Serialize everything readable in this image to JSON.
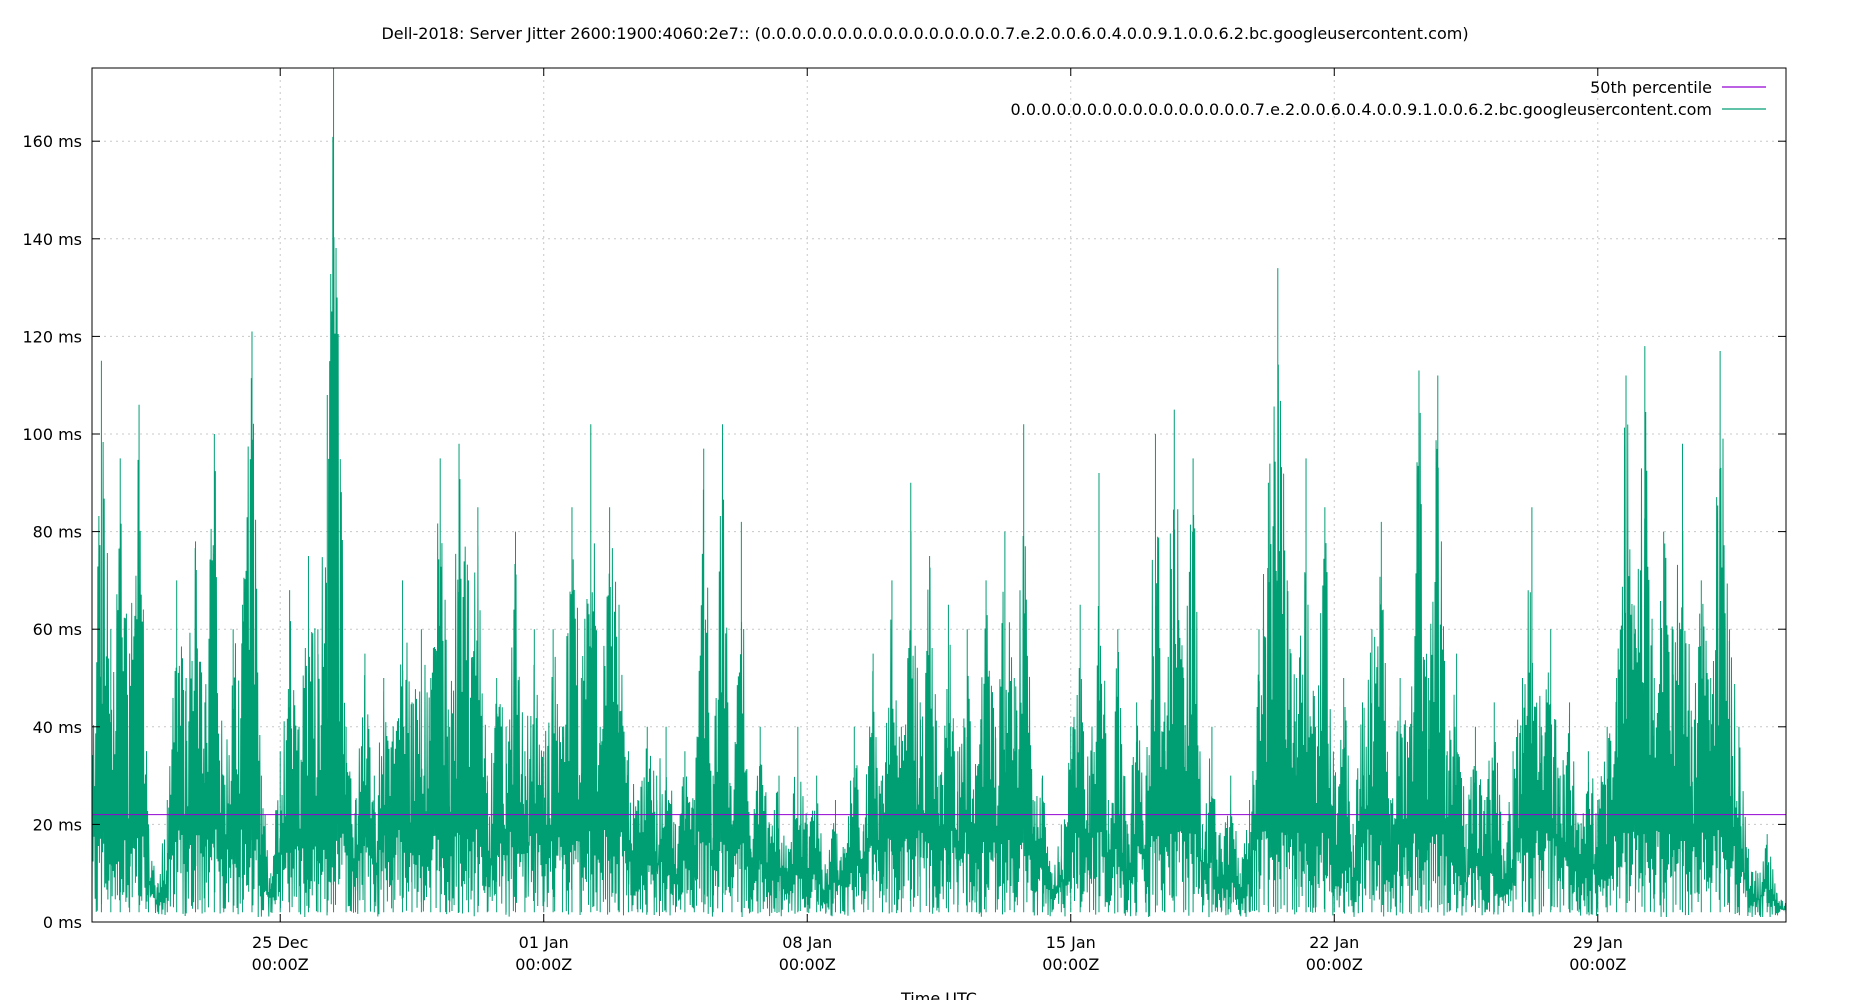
{
  "chart_data": {
    "type": "line",
    "title": "Dell-2018: Server Jitter 2600:1900:4060:2e7:: (0.0.0.0.0.0.0.0.0.0.0.0.0.0.0.0.7.e.2.0.0.6.0.4.0.0.9.1.0.0.6.2.bc.googleusercontent.com)",
    "xlabel": "Time UTC",
    "ylabel": "",
    "grid": true,
    "legend_placement": "top-right",
    "x_range": [
      "2018-12-20T00:00Z",
      "2019-02-03T00:00Z"
    ],
    "y_unit": "ms",
    "ylim": [
      0,
      175
    ],
    "yticks": [
      0,
      20,
      40,
      60,
      80,
      100,
      120,
      140,
      160
    ],
    "ytick_labels": [
      "0 ms",
      "20 ms",
      "40 ms",
      "60 ms",
      "80 ms",
      "100 ms",
      "120 ms",
      "140 ms",
      "160 ms"
    ],
    "xticks": [
      "2018-12-25T00:00Z",
      "2019-01-01T00:00Z",
      "2019-01-08T00:00Z",
      "2019-01-15T00:00Z",
      "2019-01-22T00:00Z",
      "2019-01-29T00:00Z"
    ],
    "xtick_labels": [
      [
        "25 Dec",
        "00:00Z"
      ],
      [
        "01 Jan",
        "00:00Z"
      ],
      [
        "08 Jan",
        "00:00Z"
      ],
      [
        "15 Jan",
        "00:00Z"
      ],
      [
        "22 Jan",
        "00:00Z"
      ],
      [
        "29 Jan",
        "00:00Z"
      ]
    ],
    "series": [
      {
        "name": "50th percentile",
        "color": "#9400d3",
        "kind": "constant",
        "value": 22
      },
      {
        "name": "0.0.0.0.0.0.0.0.0.0.0.0.0.0.0.0.7.e.2.0.0.6.0.4.0.0.9.1.0.0.6.2.bc.googleusercontent.com",
        "color": "#009e73",
        "kind": "jitter",
        "points": [
          [
            "2018-12-20T00:00Z",
            40
          ],
          [
            "2018-12-20T06:00Z",
            115
          ],
          [
            "2018-12-20T12:00Z",
            60
          ],
          [
            "2018-12-20T18:00Z",
            95
          ],
          [
            "2018-12-21T00:00Z",
            55
          ],
          [
            "2018-12-21T06:00Z",
            106
          ],
          [
            "2018-12-21T12:00Z",
            20
          ],
          [
            "2018-12-21T18:00Z",
            8
          ],
          [
            "2018-12-22T00:00Z",
            25
          ],
          [
            "2018-12-22T06:00Z",
            70
          ],
          [
            "2018-12-22T12:00Z",
            50
          ],
          [
            "2018-12-22T18:00Z",
            78
          ],
          [
            "2018-12-23T00:00Z",
            45
          ],
          [
            "2018-12-23T06:00Z",
            100
          ],
          [
            "2018-12-23T12:00Z",
            30
          ],
          [
            "2018-12-23T18:00Z",
            60
          ],
          [
            "2018-12-24T00:00Z",
            65
          ],
          [
            "2018-12-24T06:00Z",
            121
          ],
          [
            "2018-12-24T12:00Z",
            30
          ],
          [
            "2018-12-24T18:00Z",
            10
          ],
          [
            "2018-12-25T00:00Z",
            35
          ],
          [
            "2018-12-25T06:00Z",
            68
          ],
          [
            "2018-12-25T12:00Z",
            40
          ],
          [
            "2018-12-25T18:00Z",
            75
          ],
          [
            "2018-12-26T00:00Z",
            60
          ],
          [
            "2018-12-26T06:00Z",
            108
          ],
          [
            "2018-12-26T10:00Z",
            175
          ],
          [
            "2018-12-26T18:00Z",
            40
          ],
          [
            "2018-12-27T00:00Z",
            25
          ],
          [
            "2018-12-27T06:00Z",
            55
          ],
          [
            "2018-12-27T12:00Z",
            30
          ],
          [
            "2018-12-27T18:00Z",
            50
          ],
          [
            "2018-12-28T00:00Z",
            40
          ],
          [
            "2018-12-28T06:00Z",
            70
          ],
          [
            "2018-12-28T12:00Z",
            45
          ],
          [
            "2018-12-28T18:00Z",
            60
          ],
          [
            "2018-12-29T00:00Z",
            50
          ],
          [
            "2018-12-29T06:00Z",
            95
          ],
          [
            "2018-12-29T12:00Z",
            40
          ],
          [
            "2018-12-29T18:00Z",
            98
          ],
          [
            "2018-12-30T00:00Z",
            70
          ],
          [
            "2018-12-30T06:00Z",
            85
          ],
          [
            "2018-12-30T12:00Z",
            30
          ],
          [
            "2018-12-30T18:00Z",
            50
          ],
          [
            "2018-12-31T00:00Z",
            40
          ],
          [
            "2018-12-31T06:00Z",
            80
          ],
          [
            "2018-12-31T12:00Z",
            35
          ],
          [
            "2018-12-31T18:00Z",
            60
          ],
          [
            "2019-01-01T00:00Z",
            35
          ],
          [
            "2019-01-01T06:00Z",
            60
          ],
          [
            "2019-01-01T12:00Z",
            40
          ],
          [
            "2019-01-01T18:00Z",
            85
          ],
          [
            "2019-01-02T00:00Z",
            50
          ],
          [
            "2019-01-02T06:00Z",
            102
          ],
          [
            "2019-01-02T12:00Z",
            40
          ],
          [
            "2019-01-02T18:00Z",
            85
          ],
          [
            "2019-01-03T00:00Z",
            65
          ],
          [
            "2019-01-03T06:00Z",
            35
          ],
          [
            "2019-01-03T12:00Z",
            25
          ],
          [
            "2019-01-03T18:00Z",
            40
          ],
          [
            "2019-01-04T00:00Z",
            30
          ],
          [
            "2019-01-04T06:00Z",
            40
          ],
          [
            "2019-01-04T12:00Z",
            20
          ],
          [
            "2019-01-04T18:00Z",
            35
          ],
          [
            "2019-01-05T00:00Z",
            25
          ],
          [
            "2019-01-05T06:00Z",
            97
          ],
          [
            "2019-01-05T12:00Z",
            30
          ],
          [
            "2019-01-05T18:00Z",
            102
          ],
          [
            "2019-01-06T00:00Z",
            20
          ],
          [
            "2019-01-06T06:00Z",
            82
          ],
          [
            "2019-01-06T12:00Z",
            15
          ],
          [
            "2019-01-06T18:00Z",
            40
          ],
          [
            "2019-01-07T00:00Z",
            20
          ],
          [
            "2019-01-07T06:00Z",
            30
          ],
          [
            "2019-01-07T12:00Z",
            15
          ],
          [
            "2019-01-07T18:00Z",
            40
          ],
          [
            "2019-01-08T00:00Z",
            20
          ],
          [
            "2019-01-08T06:00Z",
            30
          ],
          [
            "2019-01-08T12:00Z",
            10
          ],
          [
            "2019-01-08T18:00Z",
            25
          ],
          [
            "2019-01-09T00:00Z",
            15
          ],
          [
            "2019-01-09T06:00Z",
            40
          ],
          [
            "2019-01-09T12:00Z",
            20
          ],
          [
            "2019-01-09T18:00Z",
            55
          ],
          [
            "2019-01-10T00:00Z",
            30
          ],
          [
            "2019-01-10T06:00Z",
            70
          ],
          [
            "2019-01-10T12:00Z",
            40
          ],
          [
            "2019-01-10T18:00Z",
            90
          ],
          [
            "2019-01-11T00:00Z",
            45
          ],
          [
            "2019-01-11T06:00Z",
            75
          ],
          [
            "2019-01-11T12:00Z",
            30
          ],
          [
            "2019-01-11T18:00Z",
            65
          ],
          [
            "2019-01-12T00:00Z",
            35
          ],
          [
            "2019-01-12T06:00Z",
            60
          ],
          [
            "2019-01-12T12:00Z",
            30
          ],
          [
            "2019-01-12T18:00Z",
            70
          ],
          [
            "2019-01-13T00:00Z",
            40
          ],
          [
            "2019-01-13T06:00Z",
            80
          ],
          [
            "2019-01-13T12:00Z",
            50
          ],
          [
            "2019-01-13T18:00Z",
            102
          ],
          [
            "2019-01-14T00:00Z",
            25
          ],
          [
            "2019-01-14T06:00Z",
            30
          ],
          [
            "2019-01-14T12:00Z",
            10
          ],
          [
            "2019-01-14T18:00Z",
            20
          ],
          [
            "2019-01-15T00:00Z",
            40
          ],
          [
            "2019-01-15T06:00Z",
            65
          ],
          [
            "2019-01-15T12:00Z",
            30
          ],
          [
            "2019-01-15T18:00Z",
            92
          ],
          [
            "2019-01-16T00:00Z",
            25
          ],
          [
            "2019-01-16T06:00Z",
            60
          ],
          [
            "2019-01-16T12:00Z",
            20
          ],
          [
            "2019-01-16T18:00Z",
            45
          ],
          [
            "2019-01-17T00:00Z",
            30
          ],
          [
            "2019-01-17T06:00Z",
            100
          ],
          [
            "2019-01-17T12:00Z",
            45
          ],
          [
            "2019-01-17T18:00Z",
            105
          ],
          [
            "2019-01-18T00:00Z",
            50
          ],
          [
            "2019-01-18T06:00Z",
            95
          ],
          [
            "2019-01-18T12:00Z",
            20
          ],
          [
            "2019-01-18T18:00Z",
            40
          ],
          [
            "2019-01-19T00:00Z",
            15
          ],
          [
            "2019-01-19T06:00Z",
            30
          ],
          [
            "2019-01-19T12:00Z",
            10
          ],
          [
            "2019-01-19T18:00Z",
            25
          ],
          [
            "2019-01-20T00:00Z",
            60
          ],
          [
            "2019-01-20T06:00Z",
            90
          ],
          [
            "2019-01-20T12:00Z",
            134
          ],
          [
            "2019-01-20T18:00Z",
            70
          ],
          [
            "2019-01-21T00:00Z",
            50
          ],
          [
            "2019-01-21T06:00Z",
            95
          ],
          [
            "2019-01-21T12:00Z",
            40
          ],
          [
            "2019-01-21T18:00Z",
            85
          ],
          [
            "2019-01-22T00:00Z",
            30
          ],
          [
            "2019-01-22T06:00Z",
            50
          ],
          [
            "2019-01-22T12:00Z",
            20
          ],
          [
            "2019-01-22T18:00Z",
            45
          ],
          [
            "2019-01-23T00:00Z",
            60
          ],
          [
            "2019-01-23T06:00Z",
            82
          ],
          [
            "2019-01-23T12:00Z",
            25
          ],
          [
            "2019-01-23T18:00Z",
            50
          ],
          [
            "2019-01-24T00:00Z",
            40
          ],
          [
            "2019-01-24T06:00Z",
            113
          ],
          [
            "2019-01-24T12:00Z",
            50
          ],
          [
            "2019-01-24T18:00Z",
            112
          ],
          [
            "2019-01-25T00:00Z",
            35
          ],
          [
            "2019-01-25T06:00Z",
            55
          ],
          [
            "2019-01-25T12:00Z",
            20
          ],
          [
            "2019-01-25T18:00Z",
            40
          ],
          [
            "2019-01-26T00:00Z",
            25
          ],
          [
            "2019-01-26T06:00Z",
            45
          ],
          [
            "2019-01-26T12:00Z",
            15
          ],
          [
            "2019-01-26T18:00Z",
            35
          ],
          [
            "2019-01-27T00:00Z",
            50
          ],
          [
            "2019-01-27T06:00Z",
            85
          ],
          [
            "2019-01-27T12:00Z",
            40
          ],
          [
            "2019-01-27T18:00Z",
            60
          ],
          [
            "2019-01-28T00:00Z",
            30
          ],
          [
            "2019-01-28T06:00Z",
            45
          ],
          [
            "2019-01-28T12:00Z",
            20
          ],
          [
            "2019-01-28T18:00Z",
            35
          ],
          [
            "2019-01-29T00:00Z",
            25
          ],
          [
            "2019-01-29T06:00Z",
            40
          ],
          [
            "2019-01-29T12:00Z",
            50
          ],
          [
            "2019-01-29T18:00Z",
            112
          ],
          [
            "2019-01-30T00:00Z",
            60
          ],
          [
            "2019-01-30T06:00Z",
            118
          ],
          [
            "2019-01-30T12:00Z",
            50
          ],
          [
            "2019-01-30T18:00Z",
            80
          ],
          [
            "2019-01-31T00:00Z",
            60
          ],
          [
            "2019-01-31T06:00Z",
            98
          ],
          [
            "2019-01-31T12:00Z",
            40
          ],
          [
            "2019-01-31T18:00Z",
            70
          ],
          [
            "2019-02-01T00:00Z",
            50
          ],
          [
            "2019-02-01T06:00Z",
            117
          ],
          [
            "2019-02-01T12:00Z",
            60
          ],
          [
            "2019-02-01T18:00Z",
            40
          ],
          [
            "2019-02-02T00:00Z",
            15
          ],
          [
            "2019-02-02T06:00Z",
            10
          ],
          [
            "2019-02-02T12:00Z",
            18
          ],
          [
            "2019-02-02T18:00Z",
            6
          ],
          [
            "2019-02-03T00:00Z",
            4
          ]
        ]
      }
    ]
  }
}
